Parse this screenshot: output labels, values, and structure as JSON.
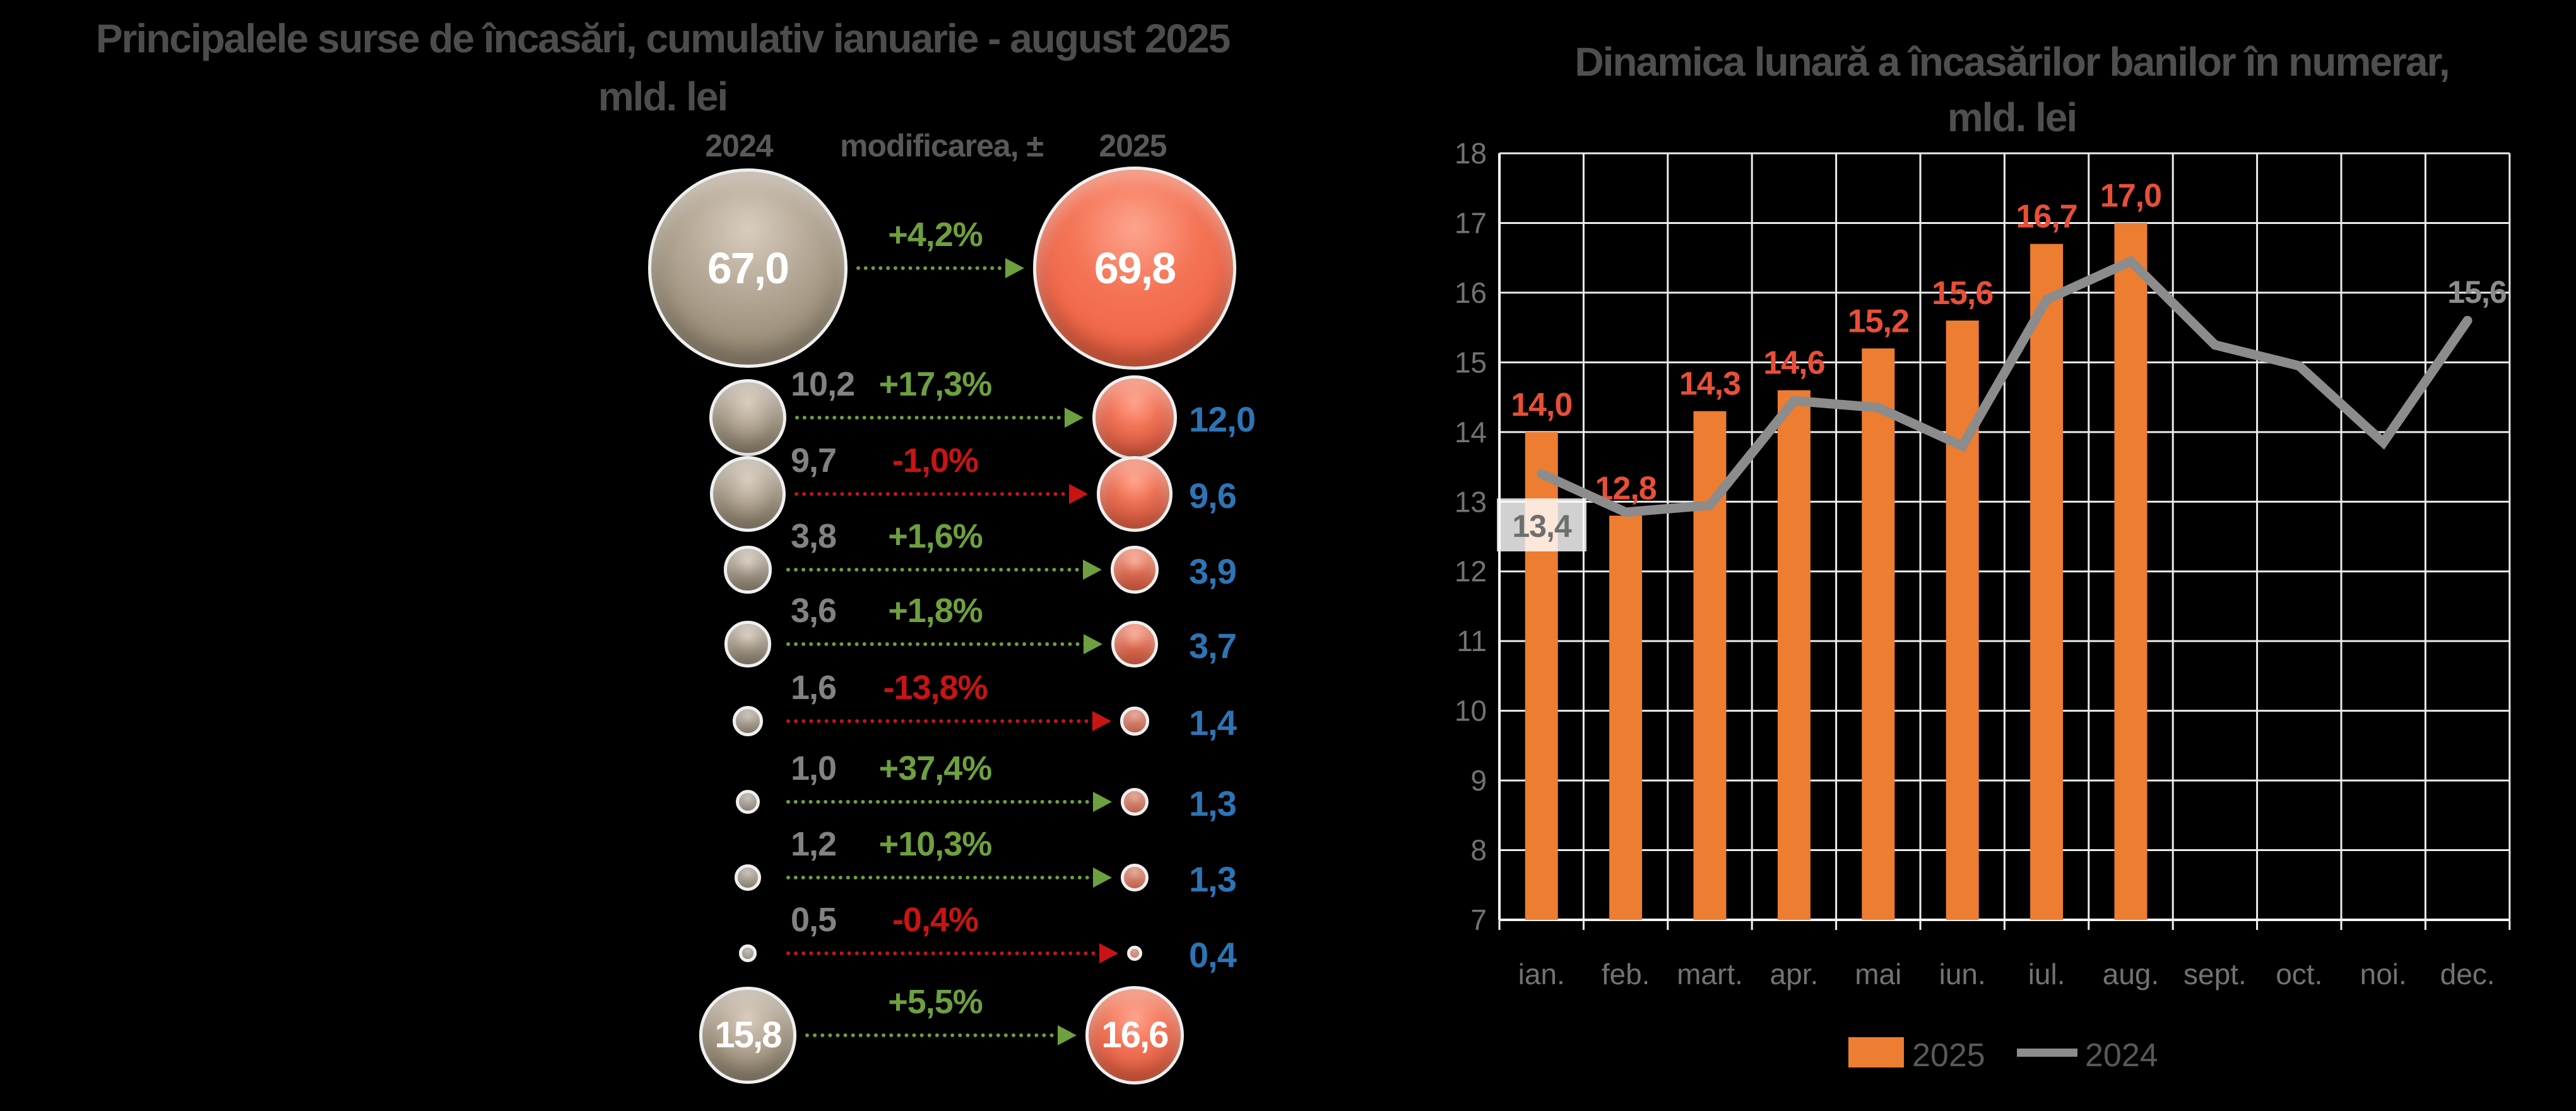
{
  "page": {
    "background": "#000000"
  },
  "left_chart": {
    "title_line1": "Principalele surse de încasări, cumulativ ianuarie - august 2025",
    "title_line2": "mld. lei",
    "columns": {
      "y2024": "2024",
      "change": "modificarea, ±",
      "y2025": "2025"
    },
    "rows": [
      {
        "label_2024": "67,0",
        "change": "+4,2%",
        "label_2025": "69,8",
        "value_2024": 67.0,
        "value_2025": 69.8,
        "direction": "up",
        "labels_inside": true
      },
      {
        "label_2024": "10,2",
        "change": "+17,3%",
        "label_2025": "12,0",
        "value_2024": 10.2,
        "value_2025": 12.0,
        "direction": "up",
        "labels_inside": false
      },
      {
        "label_2024": "9,7",
        "change": "-1,0%",
        "label_2025": "9,6",
        "value_2024": 9.7,
        "value_2025": 9.6,
        "direction": "down",
        "labels_inside": false
      },
      {
        "label_2024": "3,8",
        "change": "+1,6%",
        "label_2025": "3,9",
        "value_2024": 3.8,
        "value_2025": 3.9,
        "direction": "up",
        "labels_inside": false
      },
      {
        "label_2024": "3,6",
        "change": "+1,8%",
        "label_2025": "3,7",
        "value_2024": 3.6,
        "value_2025": 3.7,
        "direction": "up",
        "labels_inside": false
      },
      {
        "label_2024": "1,6",
        "change": "-13,8%",
        "label_2025": "1,4",
        "value_2024": 1.6,
        "value_2025": 1.4,
        "direction": "down",
        "labels_inside": false
      },
      {
        "label_2024": "1,0",
        "change": "+37,4%",
        "label_2025": "1,3",
        "value_2024": 1.0,
        "value_2025": 1.3,
        "direction": "up",
        "labels_inside": false
      },
      {
        "label_2024": "1,2",
        "change": "+10,3%",
        "label_2025": "1,3",
        "value_2024": 1.2,
        "value_2025": 1.3,
        "direction": "up",
        "labels_inside": false
      },
      {
        "label_2024": "0,5",
        "change": "-0,4%",
        "label_2025": "0,4",
        "value_2024": 0.5,
        "value_2025": 0.4,
        "direction": "down",
        "labels_inside": false
      },
      {
        "label_2024": "15,8",
        "change": "+5,5%",
        "label_2025": "16,6",
        "value_2024": 15.8,
        "value_2025": 16.6,
        "direction": "up",
        "labels_inside": true
      }
    ],
    "colors": {
      "bubble_2024": "#a79a88",
      "bubble_2025": "#f2694c",
      "up": "#6ea03f",
      "down": "#c81414",
      "value_2024_text": "#828282",
      "value_2025_text": "#2e74b5",
      "header_text": "#595959",
      "title_text": "#4d4d4d"
    }
  },
  "right_chart": {
    "title_line1": "Dinamica lunară a încasărilor banilor în numerar,",
    "title_line2": "mld. lei",
    "first_point_label": "13,4",
    "last_point_label": "15,6",
    "colors": {
      "bar": "#ed7d31",
      "bar_label": "#e84f38",
      "line": "#8c8c8c",
      "grid": "#ececec",
      "axis": "#f5f5f5",
      "axis_text": "#737373",
      "title_text": "#4f4f4f",
      "point_label_box": "#ffffff"
    }
  },
  "chart_data": [
    {
      "type": "table",
      "title": "Principalele surse de încasări, cumulativ ianuarie - august 2025, mld. lei",
      "columns": [
        "2024",
        "modificarea, ±",
        "2025"
      ],
      "rows": [
        [
          67.0,
          "+4,2%",
          69.8
        ],
        [
          10.2,
          "+17,3%",
          12.0
        ],
        [
          9.7,
          "-1,0%",
          9.6
        ],
        [
          3.8,
          "+1,6%",
          3.9
        ],
        [
          3.6,
          "+1,8%",
          3.7
        ],
        [
          1.6,
          "-13,8%",
          1.4
        ],
        [
          1.0,
          "+37,4%",
          1.3
        ],
        [
          1.2,
          "+10,3%",
          1.3
        ],
        [
          0.5,
          "-0,4%",
          0.4
        ],
        [
          15.8,
          "+5,5%",
          16.6
        ]
      ]
    },
    {
      "type": "bar",
      "title": "Dinamica lunară a încasărilor banilor în numerar, mld. lei",
      "categories": [
        "ian.",
        "feb.",
        "mart.",
        "apr.",
        "mai",
        "iun.",
        "iul.",
        "aug.",
        "sept.",
        "oct.",
        "noi.",
        "dec."
      ],
      "series": [
        {
          "name": "2025",
          "type": "bar",
          "values": [
            14.0,
            12.8,
            14.3,
            14.6,
            15.2,
            15.6,
            16.7,
            17.0,
            null,
            null,
            null,
            null
          ],
          "labels": [
            "14,0",
            "12,8",
            "14,3",
            "14,6",
            "15,2",
            "15,6",
            "16,7",
            "17,0"
          ]
        },
        {
          "name": "2024",
          "type": "line",
          "values": [
            13.4,
            12.85,
            12.95,
            14.45,
            14.35,
            13.8,
            15.9,
            16.45,
            15.25,
            14.95,
            13.85,
            15.6
          ]
        }
      ],
      "ylim": [
        7,
        18
      ],
      "yticks": [
        7,
        8,
        9,
        10,
        11,
        12,
        13,
        14,
        15,
        16,
        17,
        18
      ],
      "grid": true,
      "legend_position": "bottom"
    }
  ]
}
